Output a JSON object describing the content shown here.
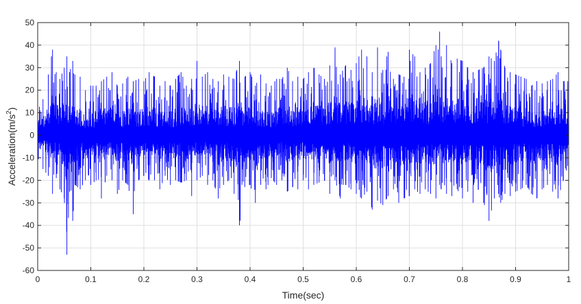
{
  "chart_data": {
    "type": "line",
    "title": "",
    "xlabel": "Time(sec)",
    "ylabel": "Acceleration(m/s",
    "ylabel_sup": "2",
    "ylabel_close": ")",
    "xlim": [
      0,
      1
    ],
    "ylim": [
      -60,
      50
    ],
    "xticks": [
      0,
      0.1,
      0.2,
      0.3,
      0.4,
      0.5,
      0.6,
      0.7,
      0.8,
      0.9,
      1
    ],
    "xtick_labels": [
      "0",
      "0.1",
      "0.2",
      "0.3",
      "0.4",
      "0.5",
      "0.6",
      "0.7",
      "0.8",
      "0.9",
      "1"
    ],
    "yticks": [
      -60,
      -50,
      -40,
      -30,
      -20,
      -10,
      0,
      10,
      20,
      30,
      40,
      50
    ],
    "ytick_labels": [
      "-60",
      "-50",
      "-40",
      "-30",
      "-20",
      "-10",
      "0",
      "10",
      "20",
      "30",
      "40",
      "50"
    ],
    "grid": true,
    "series_color": "#0000ff",
    "series": [
      {
        "x": [
          0,
          0.01,
          0.02,
          0.028,
          0.035,
          0.042,
          0.05,
          0.055,
          0.06,
          0.066,
          0.07,
          0.08,
          0.09,
          0.1,
          0.11,
          0.12,
          0.13,
          0.14,
          0.15,
          0.16,
          0.17,
          0.18,
          0.19,
          0.2,
          0.21,
          0.22,
          0.23,
          0.24,
          0.25,
          0.26,
          0.27,
          0.28,
          0.29,
          0.3,
          0.31,
          0.32,
          0.33,
          0.34,
          0.35,
          0.36,
          0.37,
          0.38,
          0.39,
          0.4,
          0.41,
          0.42,
          0.43,
          0.44,
          0.45,
          0.46,
          0.47,
          0.48,
          0.49,
          0.5,
          0.51,
          0.52,
          0.53,
          0.54,
          0.55,
          0.56,
          0.57,
          0.58,
          0.59,
          0.6,
          0.61,
          0.62,
          0.63,
          0.64,
          0.65,
          0.66,
          0.67,
          0.68,
          0.69,
          0.7,
          0.71,
          0.72,
          0.73,
          0.74,
          0.75,
          0.757,
          0.76,
          0.77,
          0.78,
          0.79,
          0.8,
          0.81,
          0.82,
          0.83,
          0.84,
          0.85,
          0.86,
          0.868,
          0.872,
          0.88,
          0.89,
          0.9,
          0.91,
          0.92,
          0.93,
          0.94,
          0.95,
          0.96,
          0.97,
          0.98,
          0.99,
          1.0
        ],
        "upper": [
          15,
          16,
          27,
          38,
          28,
          25,
          30,
          35,
          28,
          33,
          27,
          26,
          20,
          22,
          22,
          24,
          26,
          28,
          22,
          23,
          26,
          24,
          25,
          24,
          28,
          26,
          22,
          24,
          22,
          25,
          28,
          22,
          25,
          33,
          26,
          28,
          25,
          24,
          27,
          26,
          25,
          33,
          26,
          28,
          22,
          27,
          23,
          22,
          25,
          25,
          30,
          24,
          26,
          25,
          28,
          30,
          27,
          25,
          31,
          39,
          27,
          31,
          29,
          32,
          38,
          35,
          28,
          39,
          29,
          37,
          25,
          27,
          26,
          38,
          35,
          28,
          30,
          32,
          40,
          46,
          35,
          40,
          32,
          34,
          33,
          30,
          28,
          29,
          30,
          35,
          33,
          42,
          38,
          30,
          28,
          27,
          26,
          25,
          22,
          24,
          23,
          24,
          25,
          28,
          24,
          24
        ],
        "lower": [
          -12,
          -15,
          -18,
          -26,
          -19,
          -24,
          -28,
          -53,
          -25,
          -38,
          -22,
          -24,
          -20,
          -22,
          -20,
          -28,
          -18,
          -20,
          -26,
          -20,
          -22,
          -35,
          -20,
          -18,
          -20,
          -20,
          -24,
          -18,
          -22,
          -20,
          -21,
          -20,
          -27,
          -20,
          -18,
          -22,
          -20,
          -28,
          -22,
          -20,
          -26,
          -40,
          -23,
          -22,
          -30,
          -22,
          -24,
          -19,
          -22,
          -20,
          -25,
          -23,
          -24,
          -20,
          -24,
          -22,
          -21,
          -20,
          -26,
          -20,
          -28,
          -22,
          -24,
          -26,
          -28,
          -25,
          -33,
          -29,
          -31,
          -27,
          -24,
          -30,
          -28,
          -27,
          -24,
          -26,
          -24,
          -26,
          -28,
          -22,
          -24,
          -26,
          -27,
          -24,
          -28,
          -25,
          -30,
          -24,
          -30,
          -38,
          -28,
          -26,
          -30,
          -26,
          -27,
          -25,
          -24,
          -22,
          -26,
          -28,
          -24,
          -22,
          -25,
          -28,
          -20,
          -12
        ]
      }
    ]
  }
}
